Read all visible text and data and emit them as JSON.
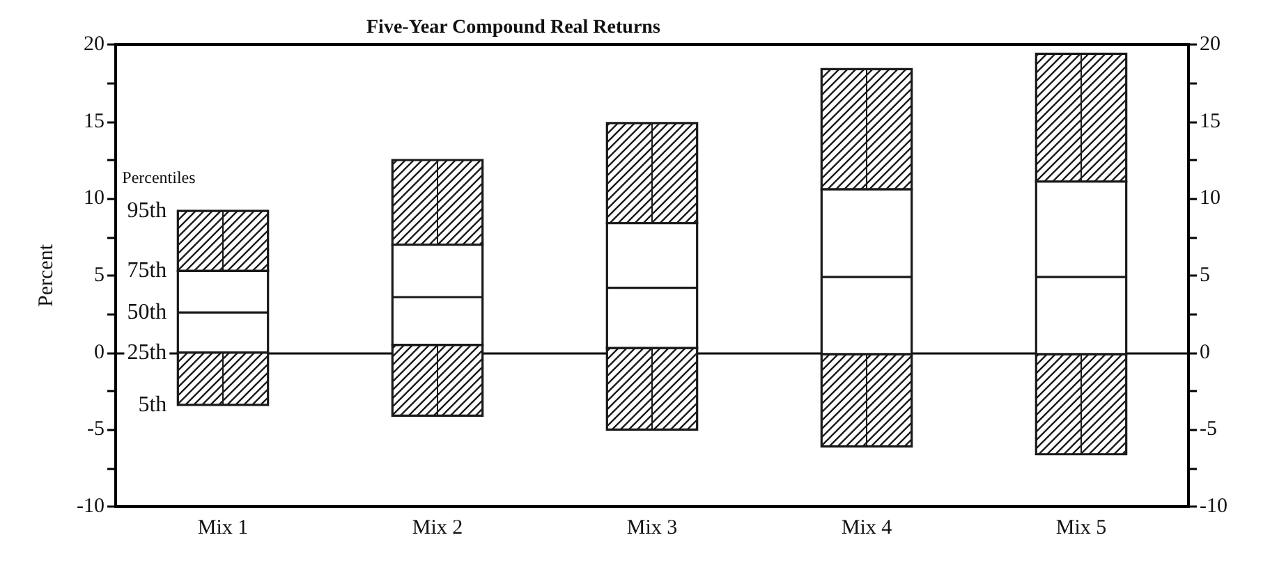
{
  "chart_data": {
    "type": "box",
    "title": "Five-Year Compound Real Returns",
    "ylabel": "Percent",
    "categories": [
      "Mix 1",
      "Mix 2",
      "Mix 3",
      "Mix 4",
      "Mix 5"
    ],
    "color": "#1a1a1a",
    "boxes": [
      {
        "low": -3.4,
        "q1": 0,
        "median": 2.6,
        "q3": 5.3,
        "high": 9.2
      },
      {
        "low": -4.1,
        "q1": 0.5,
        "median": 3.6,
        "q3": 7.0,
        "high": 12.5
      },
      {
        "low": -5.0,
        "q1": 0.3,
        "median": 4.2,
        "q3": 8.4,
        "high": 14.9
      },
      {
        "low": -6.1,
        "q1": -0.1,
        "median": 4.9,
        "q3": 10.6,
        "high": 18.4
      },
      {
        "low": -6.6,
        "q1": -0.1,
        "median": 4.9,
        "q3": 11.1,
        "high": 19.4
      }
    ],
    "ylim": [
      -10,
      20
    ],
    "yticks": [
      -10,
      {
        "value": -7.5,
        "label": null
      },
      -5,
      {
        "value": -2.5,
        "label": null
      },
      0,
      {
        "value": 2.5,
        "label": null
      },
      5,
      {
        "value": 7.5,
        "label": null
      },
      10,
      {
        "value": 12.5,
        "label": null
      },
      15,
      {
        "value": 17.5,
        "label": null
      },
      20
    ],
    "y2lim": [
      -10,
      20
    ],
    "y2ticks": [
      -10,
      {
        "value": -7.5,
        "label": null
      },
      -5,
      {
        "value": -2.5,
        "label": null
      },
      0,
      {
        "value": 2.5,
        "label": null
      },
      5,
      {
        "value": 7.5,
        "label": null
      },
      10,
      {
        "value": 12.5,
        "label": null
      },
      15,
      {
        "value": 17.5,
        "label": null
      },
      20
    ],
    "ref_lines": [
      {
        "axis": "y",
        "value": 0,
        "color": "#000000"
      }
    ],
    "annotations": [
      "Percentiles",
      "95th",
      "75th",
      "50th",
      "25th",
      "5th"
    ],
    "grid": false
  }
}
